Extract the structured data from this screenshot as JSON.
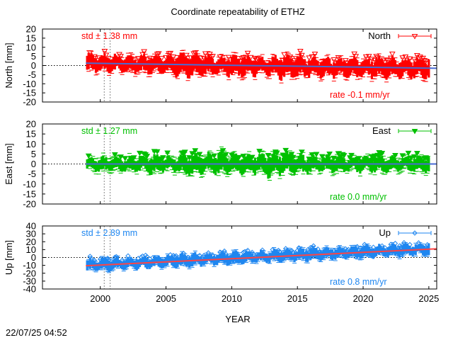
{
  "title": "Coordinate repeatability of ETHZ",
  "timestamp": "22/07/25 04:52",
  "chart_data": {
    "type": "scatter",
    "title": "Coordinate repeatability of ETHZ",
    "xlabel": "YEAR",
    "xlim": [
      1995.6,
      2025.6
    ],
    "xticks": [
      2000,
      2005,
      2010,
      2015,
      2020,
      2025
    ],
    "xtick_labels": [
      "2000",
      "2005",
      "2010",
      "2015",
      "2020",
      "2025"
    ],
    "vertical_markers": [
      2000.3,
      2000.75
    ],
    "panels": [
      {
        "name": "North",
        "ylabel": "North [mm]",
        "ylim": [
          -20,
          20
        ],
        "yticks": [
          -20,
          -15,
          -10,
          -5,
          0,
          5,
          10,
          15,
          20
        ],
        "color": "#ff0000",
        "trend_color": "#4a6cd4",
        "std_label": "std ± 1.38 mm",
        "rate_label": "rate -0.1 mm/yr",
        "legend": "North",
        "marker": "triangle-down-open",
        "trend": [
          [
            1998.9,
            1.3
          ],
          [
            2025.6,
            -1.5
          ]
        ],
        "series": [
          {
            "x": 1999,
            "y": 1.5,
            "amp": 4.5
          },
          {
            "x": 2000,
            "y": 1.0,
            "amp": 4.0
          },
          {
            "x": 2001,
            "y": 1.2,
            "amp": 4.5
          },
          {
            "x": 2002,
            "y": 0.8,
            "amp": 4.0
          },
          {
            "x": 2003,
            "y": 0.5,
            "amp": 4.5
          },
          {
            "x": 2004,
            "y": 0.6,
            "amp": 5.0
          },
          {
            "x": 2005,
            "y": 0.3,
            "amp": 4.5
          },
          {
            "x": 2006,
            "y": 0.5,
            "amp": 6.0
          },
          {
            "x": 2007,
            "y": 0.0,
            "amp": 5.5
          },
          {
            "x": 2008,
            "y": 0.2,
            "amp": 5.0
          },
          {
            "x": 2009,
            "y": -0.3,
            "amp": 4.5
          },
          {
            "x": 2010,
            "y": 0.0,
            "amp": 5.0
          },
          {
            "x": 2011,
            "y": -0.5,
            "amp": 5.0
          },
          {
            "x": 2012,
            "y": -0.3,
            "amp": 4.5
          },
          {
            "x": 2013,
            "y": -0.6,
            "amp": 5.0
          },
          {
            "x": 2014,
            "y": -0.8,
            "amp": 6.0
          },
          {
            "x": 2015,
            "y": -0.5,
            "amp": 5.5
          },
          {
            "x": 2016,
            "y": -0.9,
            "amp": 5.0
          },
          {
            "x": 2017,
            "y": -1.0,
            "amp": 5.0
          },
          {
            "x": 2018,
            "y": -1.2,
            "amp": 4.5
          },
          {
            "x": 2019,
            "y": -1.0,
            "amp": 5.0
          },
          {
            "x": 2020,
            "y": -1.3,
            "amp": 4.5
          },
          {
            "x": 2021,
            "y": -1.2,
            "amp": 5.0
          },
          {
            "x": 2022,
            "y": -1.4,
            "amp": 5.0
          },
          {
            "x": 2023,
            "y": -1.5,
            "amp": 4.5
          },
          {
            "x": 2024,
            "y": -1.4,
            "amp": 5.0
          },
          {
            "x": 2025,
            "y": -1.6,
            "amp": 5.0
          }
        ]
      },
      {
        "name": "East",
        "ylabel": "East [mm]",
        "ylim": [
          -20,
          20
        ],
        "yticks": [
          -20,
          -15,
          -10,
          -5,
          0,
          5,
          10,
          15,
          20
        ],
        "color": "#00c000",
        "trend_color": "#4a6cd4",
        "std_label": "std ± 1.27 mm",
        "rate_label": "rate  0.0 mm/yr",
        "legend": "East",
        "marker": "triangle-down-filled",
        "trend": [
          [
            1998.9,
            0.0
          ],
          [
            2025.6,
            0.0
          ]
        ],
        "series": [
          {
            "x": 1999,
            "y": 0.0,
            "amp": 3.0
          },
          {
            "x": 2000,
            "y": -0.3,
            "amp": 3.5
          },
          {
            "x": 2001,
            "y": 0.2,
            "amp": 3.0
          },
          {
            "x": 2002,
            "y": -0.5,
            "amp": 3.5
          },
          {
            "x": 2003,
            "y": 0.3,
            "amp": 4.0
          },
          {
            "x": 2004,
            "y": -0.4,
            "amp": 4.5
          },
          {
            "x": 2005,
            "y": 0.2,
            "amp": 3.5
          },
          {
            "x": 2006,
            "y": 0.0,
            "amp": 4.0
          },
          {
            "x": 2007,
            "y": -0.5,
            "amp": 5.0
          },
          {
            "x": 2008,
            "y": 0.4,
            "amp": 4.0
          },
          {
            "x": 2009,
            "y": 0.5,
            "amp": 5.5
          },
          {
            "x": 2010,
            "y": 0.2,
            "amp": 4.5
          },
          {
            "x": 2011,
            "y": -0.4,
            "amp": 4.0
          },
          {
            "x": 2012,
            "y": 0.3,
            "amp": 4.5
          },
          {
            "x": 2013,
            "y": -0.6,
            "amp": 5.5
          },
          {
            "x": 2014,
            "y": 0.6,
            "amp": 5.0
          },
          {
            "x": 2015,
            "y": 0.0,
            "amp": 4.5
          },
          {
            "x": 2016,
            "y": -0.3,
            "amp": 4.0
          },
          {
            "x": 2017,
            "y": 0.2,
            "amp": 3.5
          },
          {
            "x": 2018,
            "y": 0.0,
            "amp": 4.0
          },
          {
            "x": 2019,
            "y": -0.2,
            "amp": 3.5
          },
          {
            "x": 2020,
            "y": 0.3,
            "amp": 4.0
          },
          {
            "x": 2021,
            "y": 0.0,
            "amp": 3.5
          },
          {
            "x": 2022,
            "y": -0.3,
            "amp": 4.0
          },
          {
            "x": 2023,
            "y": 0.2,
            "amp": 3.5
          },
          {
            "x": 2024,
            "y": 0.0,
            "amp": 3.5
          },
          {
            "x": 2025,
            "y": -0.2,
            "amp": 3.5
          }
        ]
      },
      {
        "name": "Up",
        "ylabel": "Up [mm]",
        "ylim": [
          -40,
          40
        ],
        "yticks": [
          -40,
          -30,
          -20,
          -10,
          0,
          10,
          20,
          30,
          40
        ],
        "color": "#1e86f0",
        "trend_color": "#ff4444",
        "std_label": "std ± 2.89 mm",
        "rate_label": "rate  0.8 mm/yr",
        "legend": "Up",
        "marker": "diamond-open",
        "trend": [
          [
            1998.9,
            -10.5
          ],
          [
            2025.6,
            11.0
          ]
        ],
        "series": [
          {
            "x": 1999,
            "y": -10.0,
            "amp": 7.0
          },
          {
            "x": 2000,
            "y": -9.0,
            "amp": 8.0
          },
          {
            "x": 2001,
            "y": -8.5,
            "amp": 7.5
          },
          {
            "x": 2002,
            "y": -7.5,
            "amp": 7.0
          },
          {
            "x": 2003,
            "y": -7.0,
            "amp": 7.0
          },
          {
            "x": 2004,
            "y": -6.0,
            "amp": 7.5
          },
          {
            "x": 2005,
            "y": -5.0,
            "amp": 7.0
          },
          {
            "x": 2006,
            "y": -4.0,
            "amp": 7.5
          },
          {
            "x": 2007,
            "y": -3.5,
            "amp": 8.0
          },
          {
            "x": 2008,
            "y": -2.5,
            "amp": 7.0
          },
          {
            "x": 2009,
            "y": -1.5,
            "amp": 7.0
          },
          {
            "x": 2010,
            "y": -1.0,
            "amp": 7.5
          },
          {
            "x": 2011,
            "y": 0.0,
            "amp": 7.0
          },
          {
            "x": 2012,
            "y": 0.5,
            "amp": 7.0
          },
          {
            "x": 2013,
            "y": 1.5,
            "amp": 7.5
          },
          {
            "x": 2014,
            "y": 2.5,
            "amp": 7.0
          },
          {
            "x": 2015,
            "y": 3.0,
            "amp": 7.0
          },
          {
            "x": 2016,
            "y": 4.0,
            "amp": 7.5
          },
          {
            "x": 2017,
            "y": 4.5,
            "amp": 7.0
          },
          {
            "x": 2018,
            "y": 5.5,
            "amp": 7.0
          },
          {
            "x": 2019,
            "y": 6.0,
            "amp": 7.5
          },
          {
            "x": 2020,
            "y": 7.0,
            "amp": 7.0
          },
          {
            "x": 2021,
            "y": 7.5,
            "amp": 7.5
          },
          {
            "x": 2022,
            "y": 8.5,
            "amp": 7.0
          },
          {
            "x": 2023,
            "y": 9.0,
            "amp": 7.5
          },
          {
            "x": 2024,
            "y": 10.0,
            "amp": 7.0
          },
          {
            "x": 2025,
            "y": 10.5,
            "amp": 7.5
          }
        ]
      }
    ]
  }
}
